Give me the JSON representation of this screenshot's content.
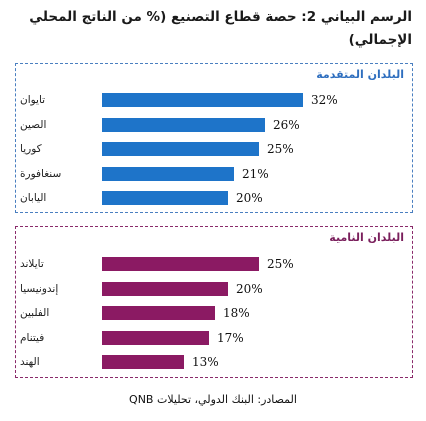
{
  "title": "الرسم البياني 2: حصة قطاع التصنيع (% من الناتج المحلي الإجمالي)",
  "source": "المصادر: البنك الدولي، تحليلات QNB",
  "colors": {
    "developed": "#1e74c9",
    "emerging": "#8b1a63"
  },
  "chart_data": [
    {
      "type": "bar",
      "orientation": "horizontal",
      "title": "البلدان المتقدمة",
      "categories": [
        "تايوان",
        "الصين",
        "كوريا",
        "سنغافورة",
        "اليابان"
      ],
      "values": [
        32,
        26,
        25,
        21,
        20
      ],
      "value_labels": [
        "32%",
        "26%",
        "25%",
        "21%",
        "20%"
      ]
    },
    {
      "type": "bar",
      "orientation": "horizontal",
      "title": "البلدان النامية",
      "categories": [
        "تايلاند",
        "إندونيسيا",
        "الفلبين",
        "فيتنام",
        "الهند"
      ],
      "values": [
        25,
        20,
        18,
        17,
        13
      ],
      "value_labels": [
        "25%",
        "20%",
        "18%",
        "17%",
        "13%"
      ]
    }
  ]
}
